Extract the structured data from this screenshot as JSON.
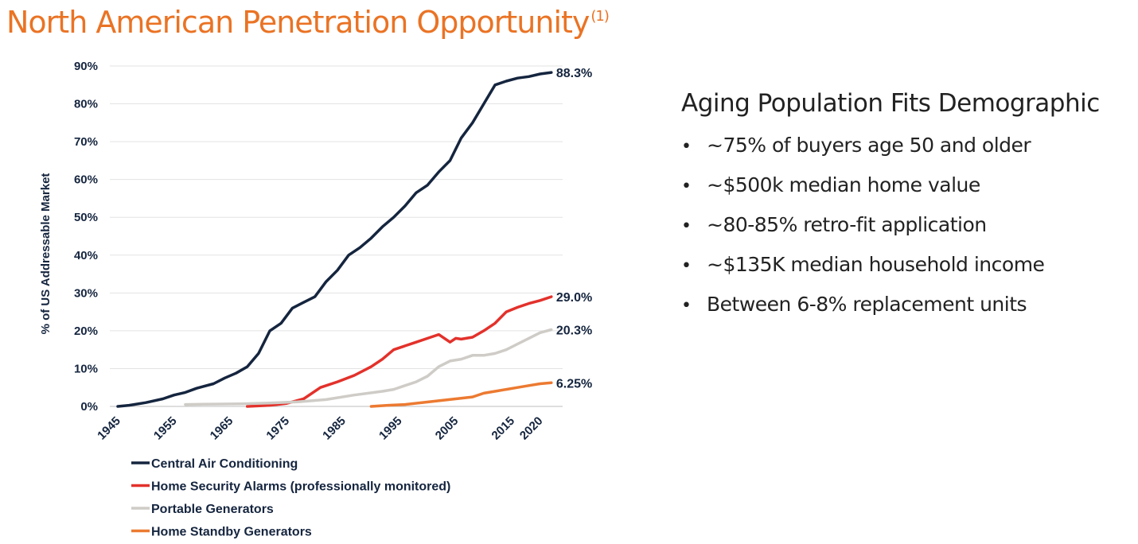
{
  "page": {
    "title": "North American Penetration Opportunity",
    "title_footnote": "(1)"
  },
  "panel": {
    "heading": "Aging Population Fits Demographic",
    "bullets": [
      "~75% of buyers age 50 and older",
      "~$500k median home value",
      "~80-85% retro-fit application",
      "~$135K median household income",
      "Between 6-8% replacement units"
    ]
  },
  "colors": {
    "title_accent": "#ea7324",
    "central_air": "#15253f",
    "security": "#e3312b",
    "portable": "#cfccc7",
    "standby": "#ec7a31"
  },
  "chart_data": {
    "type": "line",
    "title": "",
    "xlabel": "",
    "ylabel": "% of US Addressable Market",
    "x_ticks": [
      "1945",
      "1955",
      "1965",
      "1975",
      "1985",
      "1995",
      "2005",
      "2015",
      "2020"
    ],
    "xlim": [
      1945,
      2024
    ],
    "y_ticks": [
      "0%",
      "10%",
      "20%",
      "30%",
      "40%",
      "50%",
      "60%",
      "70%",
      "80%",
      "90%"
    ],
    "ylim": [
      0,
      90
    ],
    "grid": "horizontal",
    "legend_position": "bottom",
    "series": [
      {
        "name": "Central Air Conditioning",
        "color": "#15253f",
        "end_label": "88.3%",
        "points": [
          [
            1945,
            0
          ],
          [
            1947,
            0.3
          ],
          [
            1950,
            1
          ],
          [
            1953,
            2
          ],
          [
            1955,
            3
          ],
          [
            1957,
            3.7
          ],
          [
            1959,
            4.8
          ],
          [
            1962,
            6
          ],
          [
            1964,
            7.5
          ],
          [
            1966,
            8.8
          ],
          [
            1968,
            10.5
          ],
          [
            1970,
            14
          ],
          [
            1972,
            20
          ],
          [
            1974,
            22
          ],
          [
            1976,
            26
          ],
          [
            1978,
            27.5
          ],
          [
            1980,
            29
          ],
          [
            1982,
            33
          ],
          [
            1984,
            36
          ],
          [
            1986,
            40
          ],
          [
            1988,
            42
          ],
          [
            1990,
            44.5
          ],
          [
            1992,
            47.5
          ],
          [
            1994,
            50
          ],
          [
            1996,
            53
          ],
          [
            1998,
            56.5
          ],
          [
            2000,
            58.5
          ],
          [
            2002,
            62
          ],
          [
            2004,
            65
          ],
          [
            2006,
            71
          ],
          [
            2008,
            75
          ],
          [
            2010,
            80
          ],
          [
            2012,
            85
          ],
          [
            2014,
            86
          ],
          [
            2016,
            86.8
          ],
          [
            2018,
            87.2
          ],
          [
            2020,
            87.9
          ],
          [
            2022,
            88.3
          ]
        ]
      },
      {
        "name": "Home Security Alarms (professionally monitored)",
        "color": "#e3312b",
        "end_label": "29.0%",
        "points": [
          [
            1968,
            0
          ],
          [
            1972,
            0.3
          ],
          [
            1975,
            0.8
          ],
          [
            1978,
            2
          ],
          [
            1981,
            5
          ],
          [
            1984,
            6.5
          ],
          [
            1987,
            8.2
          ],
          [
            1990,
            10.5
          ],
          [
            1992,
            12.5
          ],
          [
            1994,
            15
          ],
          [
            1996,
            16
          ],
          [
            1998,
            17
          ],
          [
            2000,
            18
          ],
          [
            2002,
            19
          ],
          [
            2004,
            17
          ],
          [
            2005,
            18
          ],
          [
            2006,
            17.8
          ],
          [
            2008,
            18.3
          ],
          [
            2010,
            20
          ],
          [
            2012,
            22
          ],
          [
            2014,
            25
          ],
          [
            2016,
            26.2
          ],
          [
            2018,
            27.2
          ],
          [
            2020,
            28
          ],
          [
            2022,
            29
          ]
        ]
      },
      {
        "name": "Portable Generators",
        "color": "#cfccc7",
        "end_label": "20.3%",
        "points": [
          [
            1957,
            0.5
          ],
          [
            1962,
            0.6
          ],
          [
            1967,
            0.7
          ],
          [
            1972,
            0.9
          ],
          [
            1977,
            1.2
          ],
          [
            1982,
            1.8
          ],
          [
            1987,
            3
          ],
          [
            1992,
            4
          ],
          [
            1994,
            4.5
          ],
          [
            1996,
            5.5
          ],
          [
            1998,
            6.5
          ],
          [
            2000,
            8
          ],
          [
            2002,
            10.5
          ],
          [
            2004,
            12
          ],
          [
            2006,
            12.5
          ],
          [
            2008,
            13.5
          ],
          [
            2010,
            13.5
          ],
          [
            2012,
            14
          ],
          [
            2014,
            15
          ],
          [
            2016,
            16.5
          ],
          [
            2018,
            18
          ],
          [
            2020,
            19.5
          ],
          [
            2022,
            20.3
          ]
        ]
      },
      {
        "name": "Home Standby Generators",
        "color": "#ec7a31",
        "end_label": "6.25%",
        "points": [
          [
            1990,
            0
          ],
          [
            1993,
            0.3
          ],
          [
            1996,
            0.5
          ],
          [
            1999,
            1
          ],
          [
            2002,
            1.5
          ],
          [
            2005,
            2
          ],
          [
            2008,
            2.5
          ],
          [
            2010,
            3.5
          ],
          [
            2012,
            4
          ],
          [
            2014,
            4.5
          ],
          [
            2016,
            5
          ],
          [
            2018,
            5.5
          ],
          [
            2020,
            6
          ],
          [
            2022,
            6.25
          ]
        ]
      }
    ]
  }
}
